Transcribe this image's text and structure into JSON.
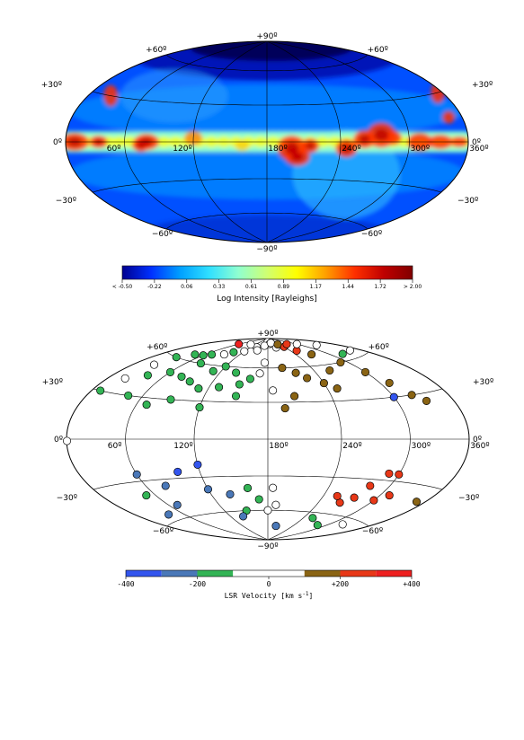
{
  "chart_data": [
    {
      "type": "heatmap",
      "projection": "aitoff-hammer, galactic, longitude 180 at center",
      "lat_labels": [
        "+90º",
        "+60º",
        "+60º",
        "+30º",
        "+30º",
        "0º",
        "0º",
        "−30º",
        "−30º",
        "−60º",
        "−60º",
        "−90º"
      ],
      "lon_labels": [
        "360º",
        "300º",
        "240º",
        "180º",
        "120º",
        "60º"
      ],
      "colorbar": {
        "ticks": [
          "< -0.50",
          "-0.22",
          "0.06",
          "0.33",
          "0.61",
          "0.89",
          "1.17",
          "1.44",
          "1.72",
          "> 2.00"
        ],
        "label": "Log Intensity [Rayleighs]",
        "range": [
          -0.5,
          2.0
        ],
        "colors": [
          "#000090",
          "#0030ff",
          "#00a0ff",
          "#30e0ff",
          "#90ffd0",
          "#d0ff70",
          "#ffff00",
          "#ffa000",
          "#ff3000",
          "#c00000",
          "#800000"
        ]
      },
      "notes": "all-sky H-alpha style intensity map; bright ridge along galactic plane"
    },
    {
      "type": "scatter",
      "projection": "aitoff-hammer, galactic, longitude 180 at center",
      "lat_labels": [
        "+90º",
        "+60º",
        "+60º",
        "+30º",
        "+30º",
        "0º",
        "0º",
        "−30º",
        "−30º",
        "−60º",
        "−60º",
        "−90º"
      ],
      "lon_labels": [
        "360º",
        "300º",
        "240º",
        "180º",
        "120º",
        "60º"
      ],
      "colorbar": {
        "ticks": [
          "-400",
          "-200",
          "0",
          "+200",
          "+400"
        ],
        "label": "LSR Velocity [km s",
        "label_sup": "-1",
        "label_end": "]",
        "range": [
          -400,
          400
        ],
        "bins": [
          {
            "color": "#3355ee"
          },
          {
            "color": "#4a78b8"
          },
          {
            "color": "#33b455"
          },
          {
            "color": "#ffffff"
          },
          {
            "color": "#ffffff"
          },
          {
            "color": "#8a6414"
          },
          {
            "color": "#e83818"
          },
          {
            "color": "#ee2020"
          }
        ]
      },
      "points": [
        {
          "l": 178,
          "b": 86,
          "v": -20
        },
        {
          "l": 190,
          "b": 84,
          "v": 30
        },
        {
          "l": 165,
          "b": 82,
          "v": 10
        },
        {
          "l": 210,
          "b": 80,
          "v": 50
        },
        {
          "l": 140,
          "b": 80,
          "v": -40
        },
        {
          "l": 150,
          "b": 77,
          "v": 20
        },
        {
          "l": 120,
          "b": 75,
          "v": -60
        },
        {
          "l": 100,
          "b": 73,
          "v": -120
        },
        {
          "l": 90,
          "b": 70,
          "v": 20
        },
        {
          "l": 70,
          "b": 68,
          "v": -150
        },
        {
          "l": 60,
          "b": 66,
          "v": -140
        },
        {
          "l": 45,
          "b": 65,
          "v": -130
        },
        {
          "l": 30,
          "b": 60,
          "v": -120
        },
        {
          "l": 25,
          "b": 52,
          "v": 10
        },
        {
          "l": 40,
          "b": 45,
          "v": -130
        },
        {
          "l": 60,
          "b": 50,
          "v": -150
        },
        {
          "l": 80,
          "b": 48,
          "v": -150
        },
        {
          "l": 95,
          "b": 45,
          "v": -140
        },
        {
          "l": 110,
          "b": 40,
          "v": -130
        },
        {
          "l": 130,
          "b": 42,
          "v": -150
        },
        {
          "l": 150,
          "b": 45,
          "v": -120
        },
        {
          "l": 160,
          "b": 50,
          "v": -110
        },
        {
          "l": 170,
          "b": 55,
          "v": -90
        },
        {
          "l": 175,
          "b": 65,
          "v": 30
        },
        {
          "l": 200,
          "b": 60,
          "v": 130
        },
        {
          "l": 215,
          "b": 55,
          "v": 150
        },
        {
          "l": 225,
          "b": 50,
          "v": 140
        },
        {
          "l": 240,
          "b": 45,
          "v": 150
        },
        {
          "l": 250,
          "b": 40,
          "v": 160
        },
        {
          "l": 260,
          "b": 55,
          "v": 150
        },
        {
          "l": 270,
          "b": 70,
          "v": 160
        },
        {
          "l": 255,
          "b": 75,
          "v": 260
        },
        {
          "l": 240,
          "b": 80,
          "v": 230
        },
        {
          "l": 290,
          "b": 60,
          "v": 150
        },
        {
          "l": 300,
          "b": 50,
          "v": 140
        },
        {
          "l": 320,
          "b": 30,
          "v": 150
        },
        {
          "l": 330,
          "b": 25,
          "v": 130
        },
        {
          "l": 310,
          "b": 40,
          "v": 120
        },
        {
          "l": 345,
          "b": 65,
          "v": 10
        },
        {
          "l": 320,
          "b": 65,
          "v": -110
        },
        {
          "l": 300,
          "b": 30,
          "v": -320
        },
        {
          "l": 205,
          "b": 35,
          "v": 140
        },
        {
          "l": 195,
          "b": 25,
          "v": 120
        },
        {
          "l": 185,
          "b": 40,
          "v": 10
        },
        {
          "l": 60,
          "b": 80,
          "v": 300
        },
        {
          "l": 100,
          "b": 82,
          "v": 20
        },
        {
          "l": 200,
          "b": 85,
          "v": 20
        },
        {
          "l": 230,
          "b": 83,
          "v": 170
        },
        {
          "l": 270,
          "b": 82,
          "v": 200
        },
        {
          "l": 300,
          "b": 80,
          "v": 40
        },
        {
          "l": 330,
          "b": 75,
          "v": 20
        },
        {
          "l": 20,
          "b": 40,
          "v": -100
        },
        {
          "l": 10,
          "b": 30,
          "v": -140
        },
        {
          "l": 45,
          "b": 30,
          "v": -130
        },
        {
          "l": 70,
          "b": 25,
          "v": -140
        },
        {
          "l": 90,
          "b": 30,
          "v": -150
        },
        {
          "l": 120,
          "b": 25,
          "v": -130
        },
        {
          "l": 150,
          "b": 35,
          "v": -140
        },
        {
          "l": 140,
          "b": 55,
          "v": -160
        },
        {
          "l": 120,
          "b": 60,
          "v": -130
        },
        {
          "l": 80,
          "b": 60,
          "v": -140
        },
        {
          "l": 110,
          "b": 55,
          "v": -150
        },
        {
          "l": 0.5,
          "b": -1,
          "v": 10
        },
        {
          "l": 120,
          "b": -20,
          "v": -350
        },
        {
          "l": 100,
          "b": -25,
          "v": -340
        },
        {
          "l": 60,
          "b": -25,
          "v": -300
        },
        {
          "l": 80,
          "b": -35,
          "v": -280
        },
        {
          "l": 120,
          "b": -40,
          "v": -260
        },
        {
          "l": 140,
          "b": -45,
          "v": -250
        },
        {
          "l": 70,
          "b": -50,
          "v": -260
        },
        {
          "l": 40,
          "b": -55,
          "v": -280
        },
        {
          "l": 50,
          "b": -40,
          "v": -200
        },
        {
          "l": 160,
          "b": -40,
          "v": -140
        },
        {
          "l": 170,
          "b": -50,
          "v": -120
        },
        {
          "l": 185,
          "b": -40,
          "v": 10
        },
        {
          "l": 190,
          "b": -55,
          "v": 20
        },
        {
          "l": 180,
          "b": -60,
          "v": 30
        },
        {
          "l": 150,
          "b": -60,
          "v": -150
        },
        {
          "l": 140,
          "b": -65,
          "v": -250
        },
        {
          "l": 200,
          "b": -75,
          "v": -280
        },
        {
          "l": 255,
          "b": -65,
          "v": -150
        },
        {
          "l": 285,
          "b": -70,
          "v": -140
        },
        {
          "l": 320,
          "b": -65,
          "v": 10
        },
        {
          "l": 300,
          "b": -25,
          "v": 250
        },
        {
          "l": 290,
          "b": -25,
          "v": 240
        },
        {
          "l": 280,
          "b": -35,
          "v": 280
        },
        {
          "l": 275,
          "b": -45,
          "v": 250
        },
        {
          "l": 265,
          "b": -50,
          "v": 260
        },
        {
          "l": 255,
          "b": -45,
          "v": 240
        },
        {
          "l": 310,
          "b": -40,
          "v": 270
        },
        {
          "l": 300,
          "b": -45,
          "v": 260
        },
        {
          "l": 350,
          "b": -40,
          "v": 160
        }
      ]
    }
  ]
}
